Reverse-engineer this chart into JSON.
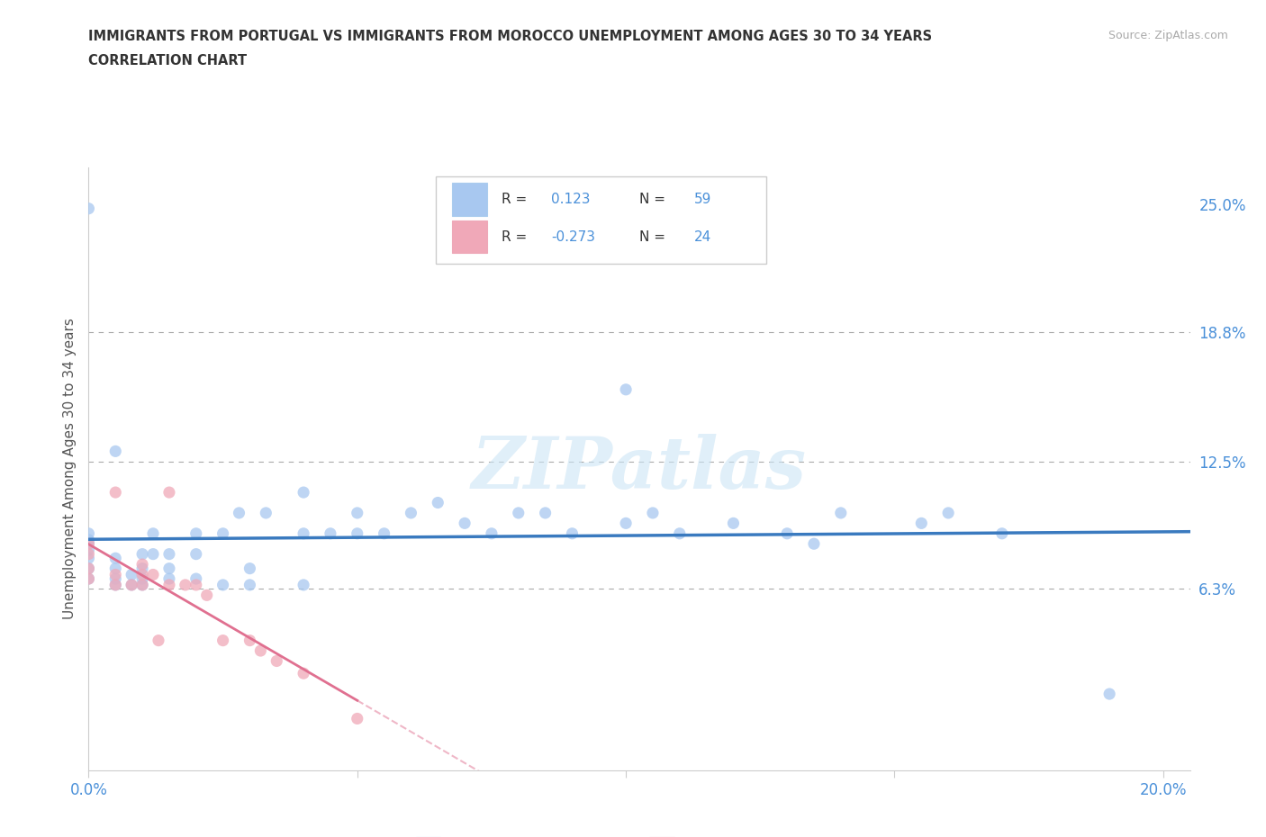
{
  "title_line1": "IMMIGRANTS FROM PORTUGAL VS IMMIGRANTS FROM MOROCCO UNEMPLOYMENT AMONG AGES 30 TO 34 YEARS",
  "title_line2": "CORRELATION CHART",
  "source": "Source: ZipAtlas.com",
  "ylabel": "Unemployment Among Ages 30 to 34 years",
  "xlim": [
    0.0,
    0.205
  ],
  "ylim": [
    -0.025,
    0.268
  ],
  "xticks": [
    0.0,
    0.05,
    0.1,
    0.15,
    0.2
  ],
  "xticklabels": [
    "0.0%",
    "",
    "",
    "",
    "20.0%"
  ],
  "ytick_positions": [
    0.063,
    0.125,
    0.188,
    0.25
  ],
  "ytick_labels": [
    "6.3%",
    "12.5%",
    "18.8%",
    "25.0%"
  ],
  "hlines": [
    0.063,
    0.125,
    0.188
  ],
  "color_portugal": "#a8c8f0",
  "color_morocco": "#f0a8b8",
  "line_portugal": "#3a7abf",
  "line_morocco": "#e07090",
  "r_portugal": "0.123",
  "n_portugal": "59",
  "r_morocco": "-0.273",
  "n_morocco": "24",
  "watermark": "ZIPatlas",
  "portugal_scatter_x": [
    0.0,
    0.0,
    0.0,
    0.0,
    0.0,
    0.0,
    0.0,
    0.0,
    0.005,
    0.005,
    0.005,
    0.005,
    0.005,
    0.008,
    0.008,
    0.01,
    0.01,
    0.01,
    0.01,
    0.012,
    0.012,
    0.015,
    0.015,
    0.015,
    0.02,
    0.02,
    0.02,
    0.025,
    0.025,
    0.028,
    0.03,
    0.03,
    0.033,
    0.04,
    0.04,
    0.04,
    0.045,
    0.05,
    0.05,
    0.055,
    0.06,
    0.065,
    0.07,
    0.075,
    0.08,
    0.085,
    0.09,
    0.1,
    0.1,
    0.105,
    0.11,
    0.12,
    0.13,
    0.135,
    0.14,
    0.155,
    0.16,
    0.17,
    0.19
  ],
  "portugal_scatter_y": [
    0.068,
    0.073,
    0.078,
    0.082,
    0.085,
    0.087,
    0.09,
    0.248,
    0.065,
    0.068,
    0.073,
    0.078,
    0.13,
    0.065,
    0.07,
    0.065,
    0.068,
    0.073,
    0.08,
    0.08,
    0.09,
    0.068,
    0.073,
    0.08,
    0.068,
    0.08,
    0.09,
    0.065,
    0.09,
    0.1,
    0.065,
    0.073,
    0.1,
    0.065,
    0.09,
    0.11,
    0.09,
    0.09,
    0.1,
    0.09,
    0.1,
    0.105,
    0.095,
    0.09,
    0.1,
    0.1,
    0.09,
    0.095,
    0.16,
    0.1,
    0.09,
    0.095,
    0.09,
    0.085,
    0.1,
    0.095,
    0.1,
    0.09,
    0.012
  ],
  "morocco_scatter_x": [
    0.0,
    0.0,
    0.0,
    0.0,
    0.005,
    0.005,
    0.005,
    0.008,
    0.01,
    0.01,
    0.01,
    0.012,
    0.013,
    0.015,
    0.015,
    0.018,
    0.02,
    0.022,
    0.025,
    0.03,
    0.032,
    0.035,
    0.04,
    0.05
  ],
  "morocco_scatter_y": [
    0.068,
    0.073,
    0.08,
    0.085,
    0.065,
    0.07,
    0.11,
    0.065,
    0.065,
    0.07,
    0.075,
    0.07,
    0.038,
    0.065,
    0.11,
    0.065,
    0.065,
    0.06,
    0.038,
    0.038,
    0.033,
    0.028,
    0.022,
    0.0
  ]
}
